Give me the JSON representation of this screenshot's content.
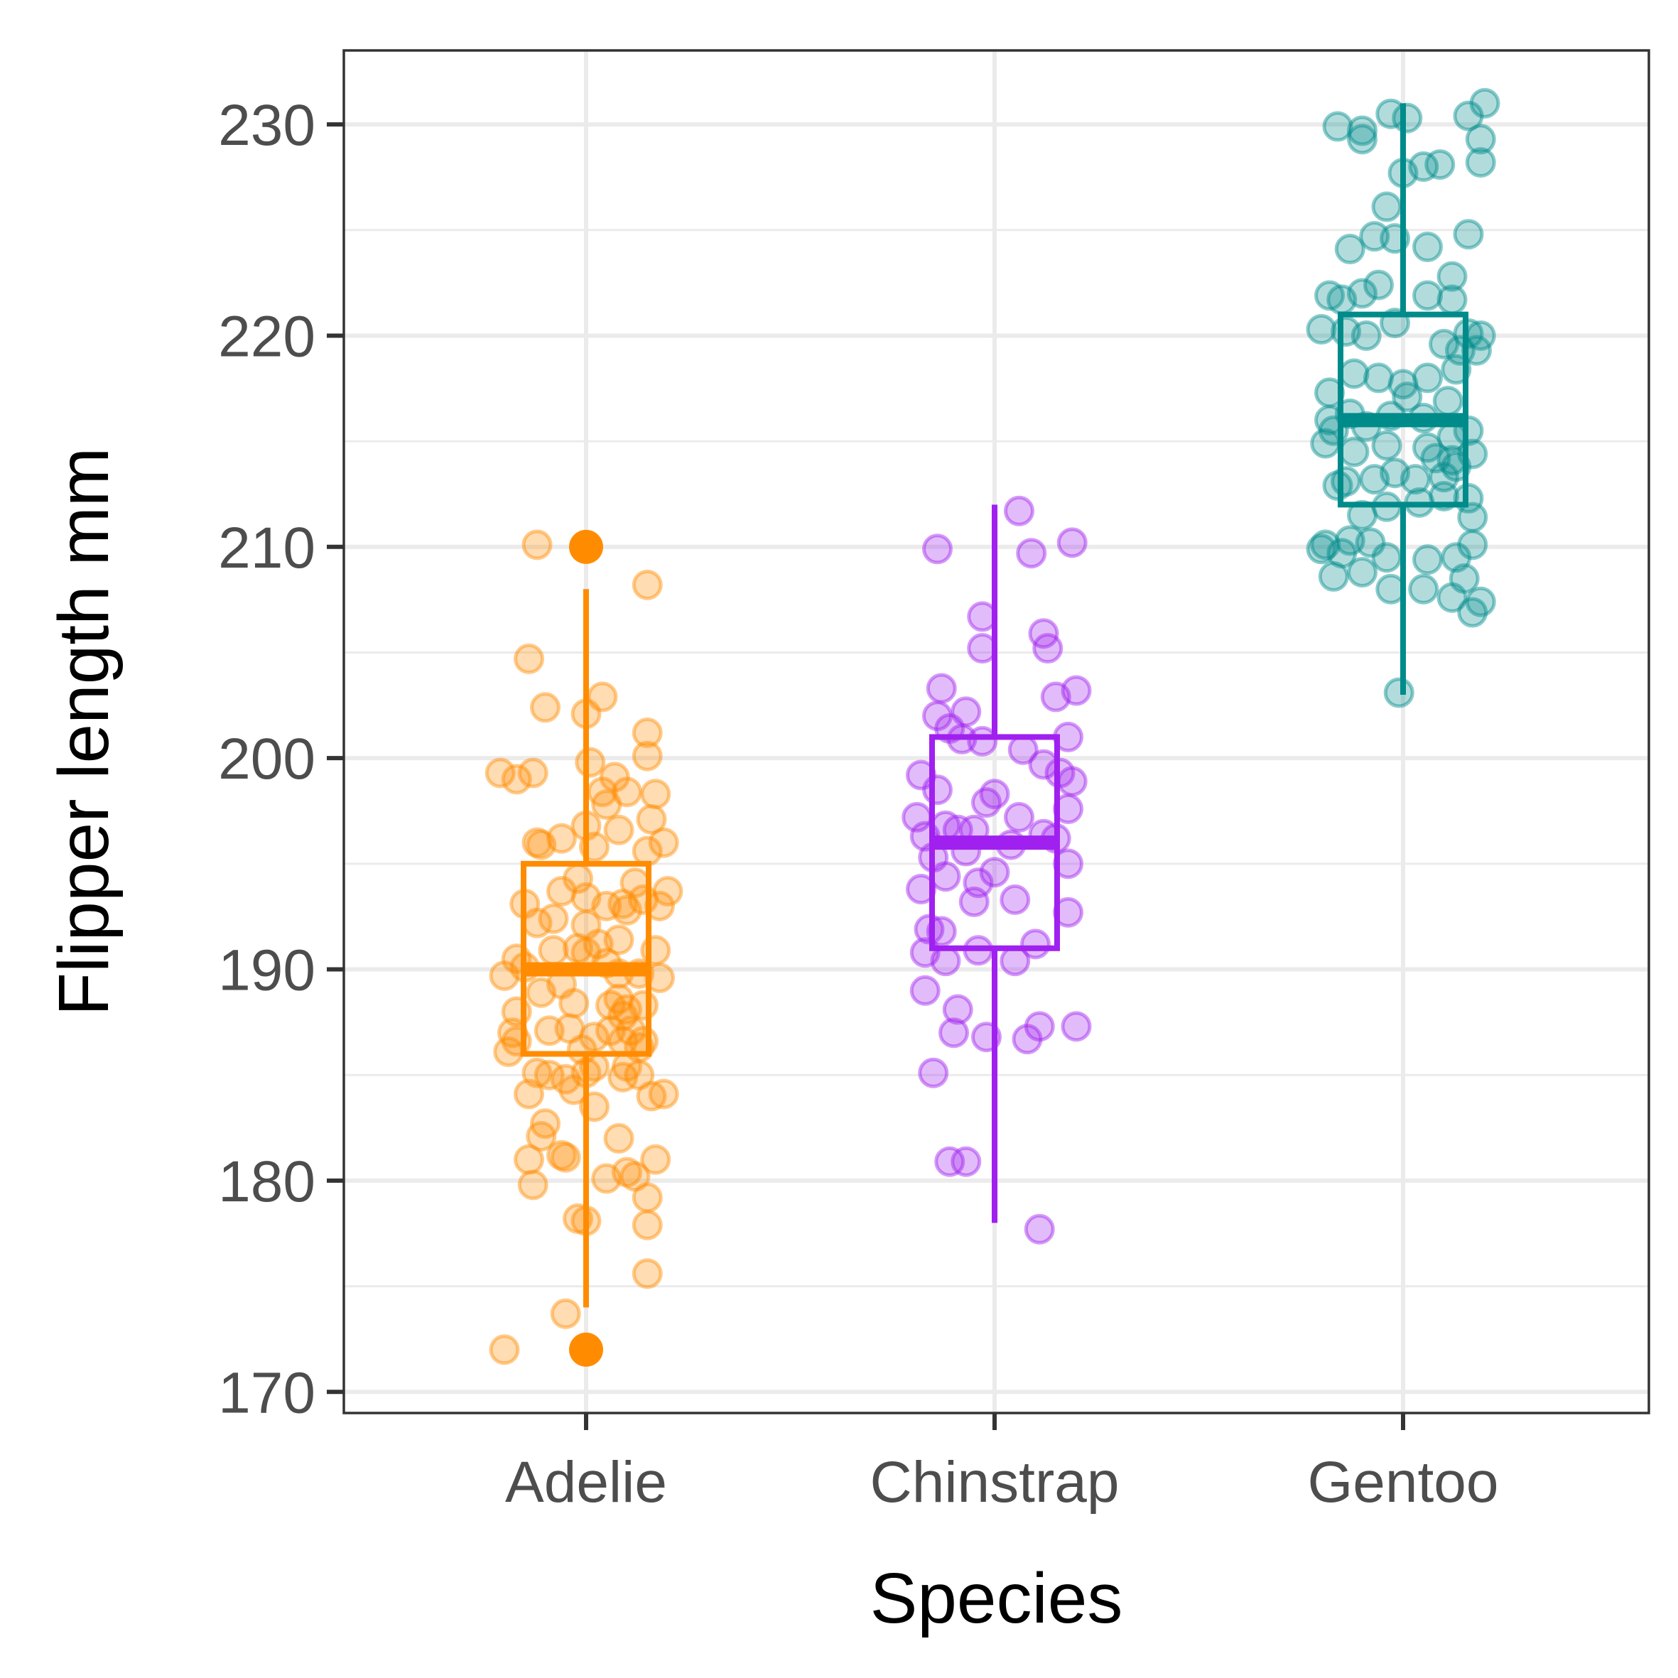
{
  "chart_data": {
    "type": "boxplot",
    "xlabel": "Species",
    "ylabel": "Flipper length mm",
    "ylim": [
      169,
      233.5
    ],
    "y_ticks": [
      170,
      180,
      190,
      200,
      210,
      220,
      230
    ],
    "y_tick_labels": [
      "170",
      "180",
      "190",
      "200",
      "210",
      "220",
      "230"
    ],
    "grid": true,
    "legend": "none",
    "categories": [
      "Adelie",
      "Chinstrap",
      "Gentoo"
    ],
    "colors": [
      "#FF8C00",
      "#A020F0",
      "#008B8B"
    ],
    "boxes": [
      {
        "category": "Adelie",
        "whisker_low": 174,
        "q1": 186,
        "median": 190,
        "q3": 195,
        "whisker_high": 208,
        "outliers": [
          172,
          210
        ]
      },
      {
        "category": "Chinstrap",
        "whisker_low": 178,
        "q1": 191,
        "median": 196,
        "q3": 201,
        "whisker_high": 212,
        "outliers": []
      },
      {
        "category": "Gentoo",
        "whisker_low": 203,
        "q1": 212,
        "median": 216,
        "q3": 221,
        "whisker_high": 231,
        "outliers": []
      }
    ],
    "points": [
      {
        "category": "Adelie",
        "jitter": [
          [
            -0.2,
            172
          ],
          [
            -0.05,
            173.7
          ],
          [
            0.15,
            175.6
          ],
          [
            -0.02,
            178.2
          ],
          [
            0.0,
            178.1
          ],
          [
            -0.13,
            179.8
          ],
          [
            0.05,
            180.1
          ],
          [
            0.1,
            180.4
          ],
          [
            0.12,
            180.2
          ],
          [
            -0.06,
            181.2
          ],
          [
            -0.14,
            181.0
          ],
          [
            -0.05,
            181.1
          ],
          [
            0.17,
            181.0
          ],
          [
            0.15,
            179.2
          ],
          [
            0.15,
            177.9
          ],
          [
            -0.11,
            182.1
          ],
          [
            -0.1,
            182.7
          ],
          [
            0.08,
            182.0
          ],
          [
            0.02,
            183.5
          ],
          [
            -0.14,
            184.1
          ],
          [
            -0.03,
            184.3
          ],
          [
            0.0,
            185.1
          ],
          [
            0.16,
            184.0
          ],
          [
            0.19,
            184.1
          ],
          [
            -0.09,
            185.0
          ],
          [
            -0.12,
            185.1
          ],
          [
            0.09,
            184.9
          ],
          [
            0.1,
            185.4
          ],
          [
            -0.19,
            186.1
          ],
          [
            -0.17,
            186.6
          ],
          [
            -0.09,
            187.1
          ],
          [
            -0.04,
            187.2
          ],
          [
            0.02,
            186.8
          ],
          [
            0.06,
            187.1
          ],
          [
            0.09,
            187.8
          ],
          [
            0.13,
            186.3
          ],
          [
            -0.03,
            188.4
          ],
          [
            -0.11,
            188.9
          ],
          [
            0.08,
            188.6
          ],
          [
            0.1,
            188.1
          ],
          [
            -0.2,
            189.7
          ],
          [
            -0.15,
            190.1
          ],
          [
            -0.06,
            189.3
          ],
          [
            0.0,
            190.8
          ],
          [
            0.05,
            190.3
          ],
          [
            -0.08,
            190.9
          ],
          [
            0.13,
            189.8
          ],
          [
            0.18,
            189.6
          ],
          [
            -0.17,
            190.5
          ],
          [
            -0.02,
            191.0
          ],
          [
            0.03,
            191.2
          ],
          [
            0.08,
            189.8
          ],
          [
            0.17,
            190.9
          ],
          [
            -0.12,
            192.2
          ],
          [
            -0.08,
            192.4
          ],
          [
            0.0,
            192.1
          ],
          [
            0.1,
            192.8
          ],
          [
            0.14,
            193.3
          ],
          [
            -0.15,
            193.1
          ],
          [
            0.05,
            193.0
          ],
          [
            0.18,
            193.0
          ],
          [
            -0.06,
            193.7
          ],
          [
            0.12,
            194.1
          ],
          [
            0.2,
            193.7
          ],
          [
            -0.02,
            194.3
          ],
          [
            -0.11,
            195.9
          ],
          [
            -0.06,
            196.2
          ],
          [
            0.02,
            195.8
          ],
          [
            0.08,
            196.6
          ],
          [
            0.15,
            195.6
          ],
          [
            0.19,
            196.0
          ],
          [
            -0.12,
            196.0
          ],
          [
            0.0,
            196.8
          ],
          [
            0.05,
            197.8
          ],
          [
            0.1,
            198.4
          ],
          [
            0.16,
            197.1
          ],
          [
            0.07,
            199.1
          ],
          [
            0.04,
            198.4
          ],
          [
            -0.21,
            199.3
          ],
          [
            -0.17,
            199.0
          ],
          [
            -0.13,
            199.3
          ],
          [
            0.01,
            199.8
          ],
          [
            0.15,
            200.1
          ],
          [
            0.17,
            198.3
          ],
          [
            0.15,
            201.2
          ],
          [
            0.04,
            202.9
          ],
          [
            0.0,
            202.1
          ],
          [
            -0.1,
            202.4
          ],
          [
            -0.14,
            204.7
          ],
          [
            0.15,
            208.2
          ],
          [
            -0.12,
            210.1
          ],
          [
            0.09,
            186.6
          ],
          [
            0.11,
            187.1
          ],
          [
            -0.05,
            184.8
          ],
          [
            0.02,
            185.4
          ],
          [
            0.13,
            185.0
          ],
          [
            -0.01,
            186.2
          ],
          [
            0.08,
            191.4
          ],
          [
            -0.17,
            188.0
          ],
          [
            0.06,
            188.3
          ],
          [
            -0.18,
            187.0
          ],
          [
            0.14,
            186.6
          ],
          [
            0.14,
            188.3
          ],
          [
            0.09,
            193.1
          ],
          [
            0.0,
            193.4
          ]
        ]
      },
      {
        "category": "Chinstrap",
        "jitter": [
          [
            0.11,
            177.7
          ],
          [
            -0.11,
            180.9
          ],
          [
            -0.07,
            180.9
          ],
          [
            -0.15,
            185.1
          ],
          [
            -0.17,
            189.0
          ],
          [
            -0.1,
            187.0
          ],
          [
            -0.09,
            188.1
          ],
          [
            -0.02,
            186.8
          ],
          [
            0.08,
            186.7
          ],
          [
            0.11,
            187.3
          ],
          [
            0.2,
            187.3
          ],
          [
            -0.17,
            190.8
          ],
          [
            -0.12,
            190.4
          ],
          [
            -0.13,
            191.8
          ],
          [
            -0.16,
            191.9
          ],
          [
            -0.04,
            190.9
          ],
          [
            0.05,
            190.4
          ],
          [
            0.1,
            191.2
          ],
          [
            0.18,
            192.7
          ],
          [
            0.05,
            193.3
          ],
          [
            -0.05,
            193.2
          ],
          [
            -0.12,
            194.4
          ],
          [
            -0.15,
            195.3
          ],
          [
            -0.18,
            193.8
          ],
          [
            -0.19,
            197.2
          ],
          [
            -0.17,
            196.3
          ],
          [
            -0.12,
            196.8
          ],
          [
            -0.05,
            196.6
          ],
          [
            -0.02,
            197.9
          ],
          [
            0.0,
            198.3
          ],
          [
            0.04,
            195.9
          ],
          [
            0.06,
            197.2
          ],
          [
            0.12,
            196.4
          ],
          [
            0.15,
            196.2
          ],
          [
            0.18,
            195.0
          ],
          [
            0.18,
            197.6
          ],
          [
            -0.09,
            196.6
          ],
          [
            0.0,
            194.6
          ],
          [
            -0.04,
            194.1
          ],
          [
            -0.07,
            195.6
          ],
          [
            -0.18,
            199.2
          ],
          [
            -0.14,
            198.5
          ],
          [
            -0.08,
            200.9
          ],
          [
            -0.11,
            201.4
          ],
          [
            -0.03,
            200.8
          ],
          [
            0.07,
            200.4
          ],
          [
            0.12,
            199.7
          ],
          [
            0.16,
            199.3
          ],
          [
            0.19,
            198.9
          ],
          [
            0.18,
            201.0
          ],
          [
            0.15,
            202.9
          ],
          [
            -0.14,
            202.0
          ],
          [
            -0.07,
            202.2
          ],
          [
            -0.13,
            203.3
          ],
          [
            0.2,
            203.2
          ],
          [
            -0.03,
            205.2
          ],
          [
            0.13,
            205.2
          ],
          [
            -0.03,
            206.7
          ],
          [
            0.12,
            205.9
          ],
          [
            0.09,
            209.7
          ],
          [
            -0.14,
            209.9
          ],
          [
            0.19,
            210.2
          ],
          [
            0.06,
            211.7
          ]
        ]
      },
      {
        "category": "Gentoo",
        "jitter": [
          [
            -0.01,
            203.1
          ],
          [
            -0.17,
            208.6
          ],
          [
            -0.1,
            208.8
          ],
          [
            -0.03,
            208.0
          ],
          [
            0.05,
            208.0
          ],
          [
            0.12,
            207.6
          ],
          [
            0.17,
            206.9
          ],
          [
            0.19,
            207.4
          ],
          [
            0.15,
            208.5
          ],
          [
            -0.2,
            209.9
          ],
          [
            -0.15,
            209.7
          ],
          [
            -0.08,
            210.2
          ],
          [
            -0.04,
            209.5
          ],
          [
            0.06,
            209.4
          ],
          [
            0.13,
            209.5
          ],
          [
            0.17,
            210.1
          ],
          [
            -0.13,
            210.3
          ],
          [
            -0.19,
            210.1
          ],
          [
            -0.1,
            211.5
          ],
          [
            -0.04,
            211.9
          ],
          [
            0.04,
            212.1
          ],
          [
            0.1,
            212.4
          ],
          [
            0.16,
            212.3
          ],
          [
            -0.16,
            212.9
          ],
          [
            0.17,
            211.4
          ],
          [
            -0.07,
            213.2
          ],
          [
            -0.02,
            213.5
          ],
          [
            0.03,
            213.2
          ],
          [
            0.08,
            214.2
          ],
          [
            0.13,
            213.8
          ],
          [
            -0.19,
            214.9
          ],
          [
            -0.12,
            214.5
          ],
          [
            -0.04,
            214.8
          ],
          [
            0.06,
            214.7
          ],
          [
            0.12,
            215.2
          ],
          [
            -0.18,
            216.0
          ],
          [
            -0.13,
            216.3
          ],
          [
            -0.09,
            215.7
          ],
          [
            -0.03,
            216.2
          ],
          [
            0.01,
            217.1
          ],
          [
            0.05,
            216.1
          ],
          [
            0.11,
            216.9
          ],
          [
            0.16,
            215.5
          ],
          [
            -0.18,
            217.3
          ],
          [
            -0.12,
            218.2
          ],
          [
            -0.06,
            218.0
          ],
          [
            0.0,
            217.7
          ],
          [
            0.06,
            218.0
          ],
          [
            0.13,
            218.4
          ],
          [
            0.18,
            219.3
          ],
          [
            -0.2,
            220.3
          ],
          [
            -0.14,
            220.2
          ],
          [
            -0.09,
            220.0
          ],
          [
            -0.02,
            220.6
          ],
          [
            0.1,
            219.6
          ],
          [
            0.14,
            219.3
          ],
          [
            0.19,
            220.0
          ],
          [
            0.16,
            220.1
          ],
          [
            -0.15,
            221.7
          ],
          [
            -0.18,
            221.9
          ],
          [
            -0.1,
            222.0
          ],
          [
            -0.06,
            222.4
          ],
          [
            0.06,
            221.9
          ],
          [
            0.12,
            221.7
          ],
          [
            -0.13,
            224.1
          ],
          [
            -0.07,
            224.7
          ],
          [
            -0.02,
            224.6
          ],
          [
            0.06,
            224.2
          ],
          [
            0.12,
            222.8
          ],
          [
            0.16,
            224.8
          ],
          [
            -0.04,
            226.1
          ],
          [
            0.0,
            227.7
          ],
          [
            0.05,
            228.0
          ],
          [
            0.19,
            228.2
          ],
          [
            0.19,
            229.3
          ],
          [
            0.16,
            230.4
          ],
          [
            -0.16,
            229.9
          ],
          [
            -0.1,
            229.7
          ],
          [
            -0.03,
            230.5
          ],
          [
            0.01,
            230.3
          ],
          [
            0.2,
            231.0
          ],
          [
            -0.1,
            229.3
          ],
          [
            0.09,
            228.1
          ],
          [
            -0.14,
            213.1
          ],
          [
            -0.17,
            215.5
          ],
          [
            0.17,
            214.4
          ],
          [
            0.12,
            214.1
          ],
          [
            0.1,
            213.3
          ]
        ]
      }
    ]
  }
}
